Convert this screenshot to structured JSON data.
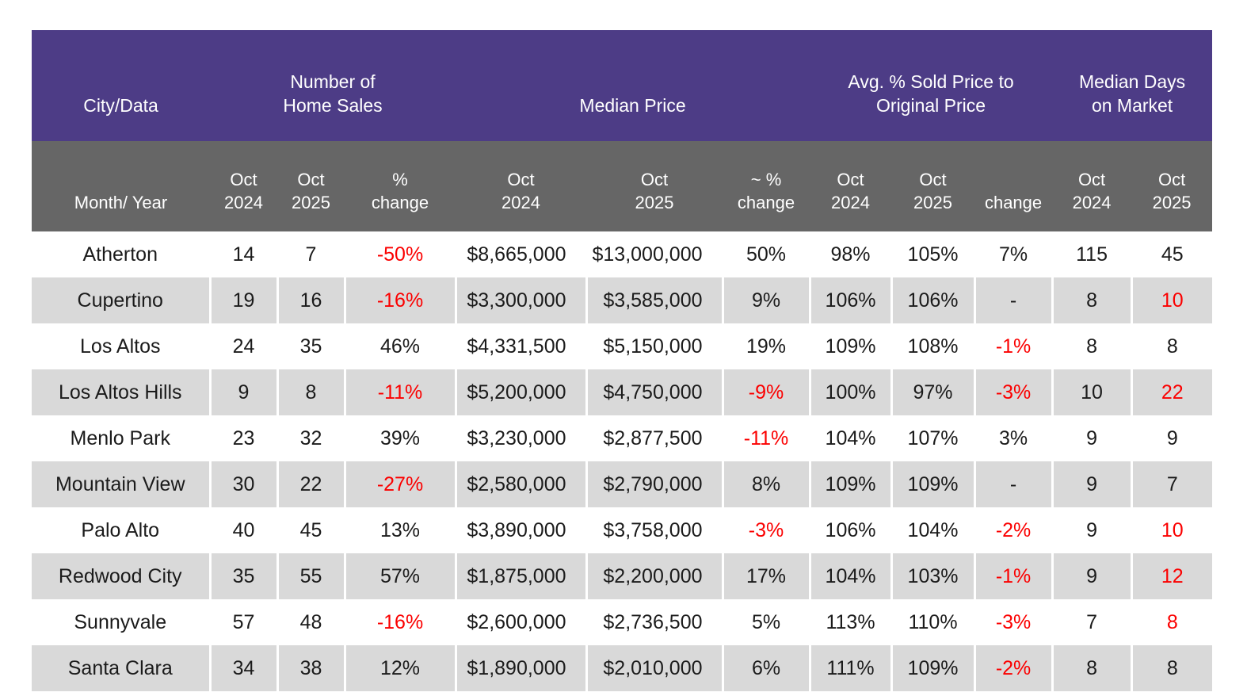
{
  "colors": {
    "group_header_bg": "#4d3c86",
    "sub_header_bg": "#666666",
    "shaded_row_bg": "#d9d9d9",
    "plain_row_bg": "#ffffff",
    "header_text": "#ffffff",
    "data_text": "#1b1b1b",
    "negative_text": "#fb0000"
  },
  "table": {
    "group_headers": [
      {
        "label": "City/Data"
      },
      {
        "label": "Number of\nHome Sales"
      },
      {
        "label": "Median Price"
      },
      {
        "label": "Avg. % Sold Price to\nOriginal Price"
      },
      {
        "label": "Median Days\non Market"
      }
    ],
    "sub_headers": [
      "Month/ Year",
      "Oct\n2024",
      "Oct\n2025",
      "%\nchange",
      "Oct\n2024",
      "Oct\n2025",
      "~ %\nchange",
      "Oct\n2024",
      "Oct\n2025",
      "change",
      "Oct\n2024",
      "Oct\n2025"
    ],
    "rows": [
      {
        "cells": [
          {
            "v": "Atherton"
          },
          {
            "v": "14"
          },
          {
            "v": "7"
          },
          {
            "v": "-50%",
            "red": true
          },
          {
            "v": "$8,665,000"
          },
          {
            "v": "$13,000,000"
          },
          {
            "v": "50%"
          },
          {
            "v": "98%"
          },
          {
            "v": "105%"
          },
          {
            "v": "7%"
          },
          {
            "v": "115"
          },
          {
            "v": "45"
          }
        ]
      },
      {
        "cells": [
          {
            "v": "Cupertino"
          },
          {
            "v": "19"
          },
          {
            "v": "16"
          },
          {
            "v": "-16%",
            "red": true
          },
          {
            "v": "$3,300,000"
          },
          {
            "v": "$3,585,000"
          },
          {
            "v": "9%"
          },
          {
            "v": "106%"
          },
          {
            "v": "106%"
          },
          {
            "v": "-"
          },
          {
            "v": "8"
          },
          {
            "v": "10",
            "red": true
          }
        ]
      },
      {
        "cells": [
          {
            "v": "Los Altos"
          },
          {
            "v": "24"
          },
          {
            "v": "35"
          },
          {
            "v": "46%"
          },
          {
            "v": "$4,331,500"
          },
          {
            "v": "$5,150,000"
          },
          {
            "v": "19%"
          },
          {
            "v": "109%"
          },
          {
            "v": "108%"
          },
          {
            "v": "-1%",
            "red": true
          },
          {
            "v": "8"
          },
          {
            "v": "8"
          }
        ]
      },
      {
        "cells": [
          {
            "v": "Los Altos Hills"
          },
          {
            "v": "9"
          },
          {
            "v": "8"
          },
          {
            "v": "-11%",
            "red": true
          },
          {
            "v": "$5,200,000"
          },
          {
            "v": "$4,750,000"
          },
          {
            "v": "-9%",
            "red": true
          },
          {
            "v": "100%"
          },
          {
            "v": "97%"
          },
          {
            "v": "-3%",
            "red": true
          },
          {
            "v": "10"
          },
          {
            "v": "22",
            "red": true
          }
        ]
      },
      {
        "cells": [
          {
            "v": "Menlo Park"
          },
          {
            "v": "23"
          },
          {
            "v": "32"
          },
          {
            "v": "39%"
          },
          {
            "v": "$3,230,000"
          },
          {
            "v": "$2,877,500"
          },
          {
            "v": "-11%",
            "red": true
          },
          {
            "v": "104%"
          },
          {
            "v": "107%"
          },
          {
            "v": "3%"
          },
          {
            "v": "9"
          },
          {
            "v": "9"
          }
        ]
      },
      {
        "cells": [
          {
            "v": "Mountain View"
          },
          {
            "v": "30"
          },
          {
            "v": "22"
          },
          {
            "v": "-27%",
            "red": true
          },
          {
            "v": "$2,580,000"
          },
          {
            "v": "$2,790,000"
          },
          {
            "v": "8%"
          },
          {
            "v": "109%"
          },
          {
            "v": "109%"
          },
          {
            "v": "-"
          },
          {
            "v": "9"
          },
          {
            "v": "7"
          }
        ]
      },
      {
        "cells": [
          {
            "v": "Palo Alto"
          },
          {
            "v": "40"
          },
          {
            "v": "45"
          },
          {
            "v": "13%"
          },
          {
            "v": "$3,890,000"
          },
          {
            "v": "$3,758,000"
          },
          {
            "v": "-3%",
            "red": true
          },
          {
            "v": "106%"
          },
          {
            "v": "104%"
          },
          {
            "v": "-2%",
            "red": true
          },
          {
            "v": "9"
          },
          {
            "v": "10",
            "red": true
          }
        ]
      },
      {
        "cells": [
          {
            "v": "Redwood City"
          },
          {
            "v": "35"
          },
          {
            "v": "55"
          },
          {
            "v": "57%"
          },
          {
            "v": "$1,875,000"
          },
          {
            "v": "$2,200,000"
          },
          {
            "v": "17%"
          },
          {
            "v": "104%"
          },
          {
            "v": "103%"
          },
          {
            "v": "-1%",
            "red": true
          },
          {
            "v": "9"
          },
          {
            "v": "12",
            "red": true
          }
        ]
      },
      {
        "cells": [
          {
            "v": "Sunnyvale"
          },
          {
            "v": "57"
          },
          {
            "v": "48"
          },
          {
            "v": "-16%",
            "red": true
          },
          {
            "v": "$2,600,000"
          },
          {
            "v": "$2,736,500"
          },
          {
            "v": "5%"
          },
          {
            "v": "113%"
          },
          {
            "v": "110%"
          },
          {
            "v": "-3%",
            "red": true
          },
          {
            "v": "7"
          },
          {
            "v": "8",
            "red": true
          }
        ]
      },
      {
        "cells": [
          {
            "v": "Santa Clara"
          },
          {
            "v": "34"
          },
          {
            "v": "38"
          },
          {
            "v": "12%"
          },
          {
            "v": "$1,890,000"
          },
          {
            "v": "$2,010,000"
          },
          {
            "v": "6%"
          },
          {
            "v": "111%"
          },
          {
            "v": "109%"
          },
          {
            "v": "-2%",
            "red": true
          },
          {
            "v": "8"
          },
          {
            "v": "8"
          }
        ]
      }
    ]
  }
}
